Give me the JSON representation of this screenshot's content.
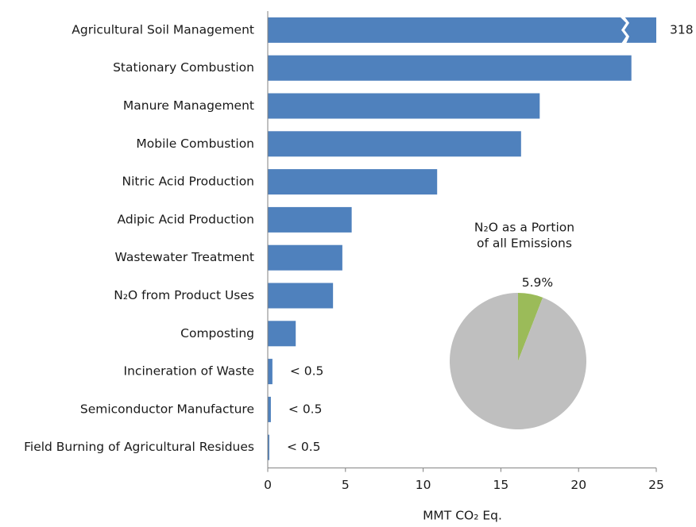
{
  "chart_data": [
    {
      "type": "bar",
      "orientation": "horizontal",
      "color": "#4f81bd",
      "categories": [
        "Agricultural Soil Management",
        "Stationary Combustion",
        "Manure Management",
        "Mobile Combustion",
        "Nitric Acid Production",
        "Adipic Acid Production",
        "Wastewater Treatment",
        "N₂O from Product Uses",
        "Composting",
        "Incineration of Waste",
        "Semiconductor Manufacture",
        "Field Burning of Agricultural Residues"
      ],
      "values": [
        318,
        23.4,
        17.5,
        16.3,
        10.9,
        5.4,
        4.8,
        4.2,
        1.8,
        0.3,
        0.2,
        0.1
      ],
      "value_labels": [
        "318",
        null,
        null,
        null,
        null,
        null,
        null,
        null,
        null,
        "< 0.5",
        "< 0.5",
        "< 0.5"
      ],
      "xlim": [
        0,
        25
      ],
      "xticks": [
        0,
        5,
        10,
        15,
        20,
        25
      ],
      "xlabel": "MMT CO₂ Eq."
    },
    {
      "type": "pie",
      "title": [
        "N₂O as a Portion",
        "of all Emissions"
      ],
      "values": [
        5.9,
        94.1
      ],
      "colors": [
        "#9bbb59",
        "#bfbfbf"
      ],
      "value_labels": [
        "5.9%",
        null
      ]
    }
  ]
}
